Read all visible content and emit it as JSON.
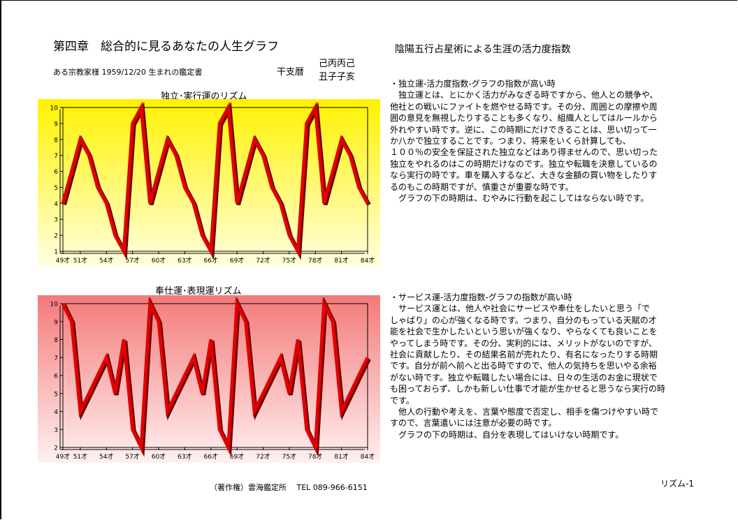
{
  "header": {
    "chapter_title": "第四章　総合的に見るあなたの人生グラフ",
    "right_title": "陰陽五行占星術による生涯の活力度指数",
    "subject_line": "ある宗教家様 1959/12/20 生まれの鑑定書",
    "eto_label": "干支暦",
    "eto_heaven": "己丙丙己",
    "eto_earth": "丑子子亥"
  },
  "colors": {
    "line": "#e00000",
    "line_shadow": "#6a0000",
    "chart1_bg_top": "#fff200",
    "chart1_bg_bottom": "#ffffe0",
    "chart2_bg_top": "#f47a7a",
    "chart2_bg_bottom": "#fff0f0"
  },
  "chart_data": [
    {
      "type": "line",
      "title": "独立･実行運のリズム",
      "x": [
        49,
        50,
        51,
        52,
        53,
        54,
        55,
        56,
        57,
        58,
        59,
        60,
        61,
        62,
        63,
        64,
        65,
        66,
        67,
        68,
        69,
        70,
        71,
        72,
        73,
        74,
        75,
        76,
        77,
        78,
        79,
        80,
        81,
        82,
        83,
        84
      ],
      "values": [
        4,
        6,
        8,
        7,
        5,
        4,
        2,
        1,
        9,
        10,
        4,
        6,
        8,
        7,
        5,
        4,
        2,
        1,
        9,
        10,
        4,
        6,
        8,
        7,
        5,
        4,
        2,
        1,
        9,
        10,
        4,
        6,
        8,
        7,
        5,
        4
      ],
      "ylim": [
        1,
        10
      ],
      "yticks": [
        "1",
        "2",
        "3",
        "4",
        "5",
        "6",
        "7",
        "8",
        "9",
        "10"
      ],
      "xticks": [
        "49才",
        "51才",
        "54才",
        "57才",
        "60才",
        "63才",
        "66才",
        "69才",
        "72才",
        "75才",
        "78才",
        "81才",
        "84才"
      ],
      "grid": false
    },
    {
      "type": "line",
      "title": "奉仕運･表現運リズム",
      "x": [
        49,
        50,
        51,
        52,
        53,
        54,
        55,
        56,
        57,
        58,
        59,
        60,
        61,
        62,
        63,
        64,
        65,
        66,
        67,
        68,
        69,
        70,
        71,
        72,
        73,
        74,
        75,
        76,
        77,
        78,
        79,
        80,
        81,
        82,
        83,
        84
      ],
      "values": [
        10,
        9,
        4,
        5,
        6,
        7,
        5,
        8,
        3,
        2,
        10,
        9,
        4,
        5,
        6,
        7,
        5,
        8,
        3,
        2,
        10,
        9,
        4,
        5,
        6,
        7,
        5,
        8,
        3,
        2,
        10,
        9,
        4,
        5,
        6,
        7
      ],
      "ylim": [
        2,
        10
      ],
      "yticks": [
        "2",
        "3",
        "4",
        "5",
        "6",
        "7",
        "8",
        "9",
        "10"
      ],
      "xticks": [
        "49才",
        "51才",
        "54才",
        "57才",
        "60才",
        "63才",
        "66才",
        "69才",
        "72才",
        "75才",
        "78才",
        "81才",
        "84才"
      ],
      "grid": false
    }
  ],
  "descriptions": [
    {
      "lines": [
        "・独立運-活力度指数-グラフの指数が高い時",
        "　独立運とは、とにかく活力がみなぎる時ですから、他人との競争や、",
        "他社との戦いにファイトを燃やせる時です。その分、周囲との摩擦や周",
        "囲の意見を無視したりすることも多くなり、組織人としてはルールから",
        "外れやすい時です。逆に、この時期にだけできることは、思い切って一",
        "か八かで独立することです。つまり、将来をいくら計算しても、",
        "１００％の安全を保証された独立などはあり得ませんので、思い切った",
        "独立をやれるのはこの時期だけなのです。独立や転職を決意しているの",
        "なら実行の時です。車を購入するなど、大きな金額の買い物をしたりす",
        "るのもこの時期ですが、慎重さが重要な時です。",
        "　グラフの下の時期は、むやみに行動を起こしてはならない時です。"
      ]
    },
    {
      "lines": [
        "・サービス運-活力度指数-グラフの指数が高い時",
        "　サービス運とは、他人や社会にサービスや奉仕をしたいと思う「で",
        "しゃばり」の心が強くなる時です。つまり、自分のもっている天賦の才",
        "能を社会で生かしたいという思いが強くなり、やらなくても良いことを",
        "やってしまう時です。その分、実利的には、メリットがないのですが、",
        "社会に貢献したり、その結果名前が売れたり、有名になったりする時期",
        "です。自分が前へ前へと出る時ですので、他人の気持ちを思いやる余裕",
        "がない時です。独立や転職したい場合には、日々の生活のお金に現状で",
        "も困っておらず、しかも新しい仕事で才能が生かせると思うなら実行の時",
        "です。",
        "　他人の行動や考えを、言葉や態度で否定し、相手を傷つけやすい時で",
        "すので、言葉遣いには注意が必要の時です。",
        "　グラフの下の時期は、自分を表現してはいけない時期です。"
      ]
    }
  ],
  "footer": {
    "copyright": "（著作権）雲海鑑定所　 TEL 089-966-6151",
    "page_label": "リズム-1"
  }
}
